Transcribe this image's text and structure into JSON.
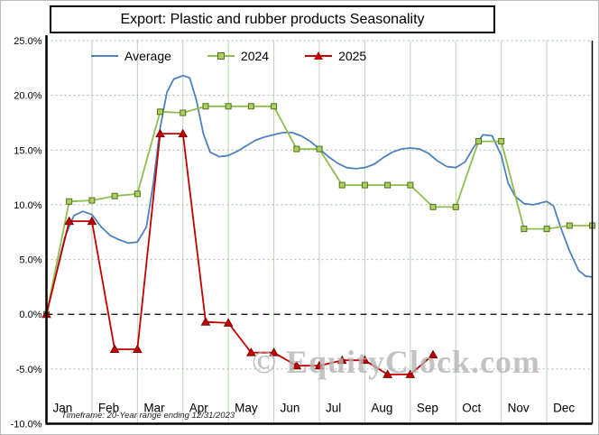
{
  "title": "Export: Plastic and rubber products Seasonality",
  "watermark": "© EquityClock.com",
  "footnote": "Timeframe: 20-Year range ending 12/31/2023",
  "chart_data": {
    "type": "line",
    "title": "Export: Plastic and rubber products Seasonality",
    "xlabel": "",
    "ylabel": "",
    "ylim": [
      -10,
      25
    ],
    "legend_position": "top-left-inside",
    "grid": {
      "vertical_color": "#b6d7af",
      "horizontal_color": "#9dbf9d",
      "zero_line": "black-dashed"
    },
    "yticks": [
      {
        "value": 25,
        "label": "25.0%"
      },
      {
        "value": 20,
        "label": "20.0%"
      },
      {
        "value": 15,
        "label": "15.0%"
      },
      {
        "value": 10,
        "label": "10.0%"
      },
      {
        "value": 5,
        "label": "5.0%"
      },
      {
        "value": 0,
        "label": "0.0%"
      },
      {
        "value": -5,
        "label": "-5.0%"
      },
      {
        "value": -10,
        "label": "-10.0%"
      }
    ],
    "x_months": [
      "Jan",
      "Feb",
      "Mar",
      "Apr",
      "May",
      "Jun",
      "Jul",
      "Aug",
      "Sep",
      "Oct",
      "Nov",
      "Dec"
    ],
    "x_note": "x in month units, Jan 1 = 0, Dec 31 = 12",
    "series": [
      {
        "name": "Average",
        "color": "#4f81bd",
        "marker": "none",
        "points": [
          [
            0,
            0
          ],
          [
            0.2,
            3.5
          ],
          [
            0.4,
            7.0
          ],
          [
            0.6,
            9.0
          ],
          [
            0.8,
            9.4
          ],
          [
            1.0,
            9.1
          ],
          [
            1.2,
            8.0
          ],
          [
            1.4,
            7.2
          ],
          [
            1.6,
            6.8
          ],
          [
            1.8,
            6.5
          ],
          [
            2.0,
            6.6
          ],
          [
            2.2,
            8.0
          ],
          [
            2.35,
            12.0
          ],
          [
            2.5,
            17.0
          ],
          [
            2.65,
            20.3
          ],
          [
            2.8,
            21.5
          ],
          [
            3.0,
            21.8
          ],
          [
            3.15,
            21.6
          ],
          [
            3.3,
            19.5
          ],
          [
            3.45,
            16.5
          ],
          [
            3.6,
            14.8
          ],
          [
            3.8,
            14.4
          ],
          [
            4.0,
            14.5
          ],
          [
            4.2,
            14.9
          ],
          [
            4.4,
            15.4
          ],
          [
            4.6,
            15.9
          ],
          [
            4.8,
            16.2
          ],
          [
            5.0,
            16.4
          ],
          [
            5.2,
            16.6
          ],
          [
            5.4,
            16.6
          ],
          [
            5.6,
            16.3
          ],
          [
            5.8,
            15.8
          ],
          [
            6.0,
            15.1
          ],
          [
            6.2,
            14.4
          ],
          [
            6.4,
            13.8
          ],
          [
            6.6,
            13.4
          ],
          [
            6.8,
            13.3
          ],
          [
            7.0,
            13.4
          ],
          [
            7.2,
            13.7
          ],
          [
            7.4,
            14.3
          ],
          [
            7.6,
            14.8
          ],
          [
            7.8,
            15.1
          ],
          [
            8.0,
            15.2
          ],
          [
            8.2,
            15.1
          ],
          [
            8.4,
            14.7
          ],
          [
            8.6,
            14.0
          ],
          [
            8.8,
            13.5
          ],
          [
            9.0,
            13.4
          ],
          [
            9.2,
            13.9
          ],
          [
            9.4,
            15.3
          ],
          [
            9.6,
            16.4
          ],
          [
            9.8,
            16.3
          ],
          [
            10.0,
            14.5
          ],
          [
            10.15,
            12.0
          ],
          [
            10.3,
            10.8
          ],
          [
            10.5,
            10.1
          ],
          [
            10.7,
            10.0
          ],
          [
            11.0,
            10.3
          ],
          [
            11.15,
            9.9
          ],
          [
            11.3,
            8.0
          ],
          [
            11.5,
            5.8
          ],
          [
            11.7,
            4.0
          ],
          [
            11.85,
            3.5
          ],
          [
            12.0,
            3.4
          ]
        ]
      },
      {
        "name": "2024",
        "color": "#92bc4e",
        "marker": "square",
        "marker_fill": "#aad15f",
        "marker_edge": "#4f711c",
        "points": [
          [
            0,
            0
          ],
          [
            0.5,
            10.3
          ],
          [
            1.0,
            10.4
          ],
          [
            1.5,
            10.8
          ],
          [
            2.0,
            11.0
          ],
          [
            2.5,
            18.5
          ],
          [
            3.0,
            18.4
          ],
          [
            3.5,
            19.0
          ],
          [
            4.0,
            19.0
          ],
          [
            4.5,
            19.0
          ],
          [
            5.0,
            19.0
          ],
          [
            5.5,
            15.1
          ],
          [
            6.0,
            15.1
          ],
          [
            6.5,
            11.8
          ],
          [
            7.0,
            11.8
          ],
          [
            7.5,
            11.8
          ],
          [
            8.0,
            11.8
          ],
          [
            8.5,
            9.8
          ],
          [
            9.0,
            9.8
          ],
          [
            9.5,
            15.8
          ],
          [
            10.0,
            15.8
          ],
          [
            10.5,
            7.8
          ],
          [
            11.0,
            7.8
          ],
          [
            11.5,
            8.1
          ],
          [
            12.0,
            8.1
          ]
        ]
      },
      {
        "name": "2025",
        "color": "#c00000",
        "marker": "triangle",
        "marker_fill": "#c00000",
        "marker_edge": "#800000",
        "points": [
          [
            0,
            0
          ],
          [
            0.5,
            8.5
          ],
          [
            1.0,
            8.5
          ],
          [
            1.5,
            -3.2
          ],
          [
            2.0,
            -3.2
          ],
          [
            2.5,
            16.5
          ],
          [
            3.0,
            16.5
          ],
          [
            3.5,
            -0.7
          ],
          [
            4.0,
            -0.8
          ],
          [
            4.5,
            -3.5
          ],
          [
            5.0,
            -3.5
          ],
          [
            5.5,
            -4.7
          ],
          [
            6.0,
            -4.7
          ],
          [
            6.5,
            -4.2
          ],
          [
            7.0,
            -4.2
          ],
          [
            7.5,
            -5.5
          ],
          [
            8.0,
            -5.5
          ],
          [
            8.5,
            -3.7
          ]
        ]
      }
    ]
  }
}
